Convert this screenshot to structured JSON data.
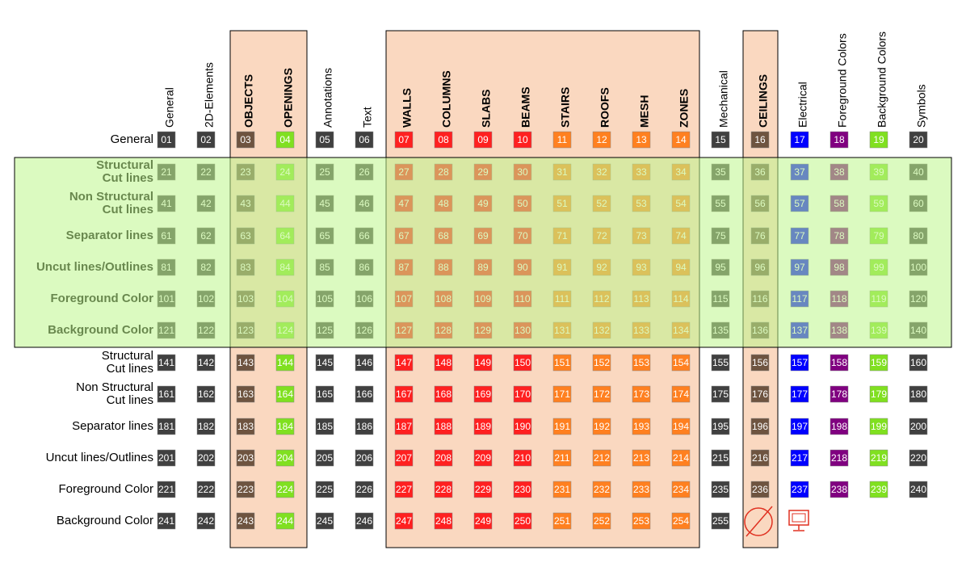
{
  "columns": [
    "General",
    "2D-Elements",
    "OBJECTS",
    "OPENINGS",
    "Annotations",
    "Text",
    "WALLS",
    "COLUMNS",
    "SLABS",
    "BEAMS",
    "STAIRS",
    "ROOFS",
    "MESH",
    "ZONES",
    "Mechanical",
    "CEILINGS",
    "Electrical",
    "Foreground Colors",
    "Background Colors",
    "Symbols"
  ],
  "rows": [
    {
      "label": [
        "General"
      ],
      "cells": [
        "01",
        "02",
        "03",
        "04",
        "05",
        "06",
        "07",
        "08",
        "09",
        "10",
        "11",
        "12",
        "13",
        "14",
        "15",
        "16",
        "17",
        "18",
        "19",
        "20"
      ]
    },
    {
      "label": [
        "Structural",
        "Cut lines"
      ],
      "cells": [
        "21",
        "22",
        "23",
        "24",
        "25",
        "26",
        "27",
        "28",
        "29",
        "30",
        "31",
        "32",
        "33",
        "34",
        "35",
        "36",
        "37",
        "38",
        "39",
        "40"
      ]
    },
    {
      "label": [
        "Non Structural",
        "Cut lines"
      ],
      "cells": [
        "41",
        "42",
        "43",
        "44",
        "45",
        "46",
        "47",
        "48",
        "49",
        "50",
        "51",
        "52",
        "53",
        "54",
        "55",
        "56",
        "57",
        "58",
        "59",
        "60"
      ]
    },
    {
      "label": [
        "Separator lines"
      ],
      "cells": [
        "61",
        "62",
        "63",
        "64",
        "65",
        "66",
        "67",
        "68",
        "69",
        "70",
        "71",
        "72",
        "73",
        "74",
        "75",
        "76",
        "77",
        "78",
        "79",
        "80"
      ]
    },
    {
      "label": [
        "Uncut lines/Outlines"
      ],
      "cells": [
        "81",
        "82",
        "83",
        "84",
        "85",
        "86",
        "87",
        "88",
        "89",
        "90",
        "91",
        "92",
        "93",
        "94",
        "95",
        "96",
        "97",
        "98",
        "99",
        "100"
      ]
    },
    {
      "label": [
        "Foreground Color"
      ],
      "cells": [
        "101",
        "102",
        "103",
        "104",
        "105",
        "106",
        "107",
        "108",
        "109",
        "110",
        "111",
        "112",
        "113",
        "114",
        "115",
        "116",
        "117",
        "118",
        "119",
        "120"
      ]
    },
    {
      "label": [
        "Background Color"
      ],
      "cells": [
        "121",
        "122",
        "123",
        "124",
        "125",
        "126",
        "127",
        "128",
        "129",
        "130",
        "131",
        "132",
        "133",
        "134",
        "135",
        "136",
        "137",
        "138",
        "139",
        "140"
      ]
    },
    {
      "label": [
        "Structural",
        "Cut lines"
      ],
      "cells": [
        "141",
        "142",
        "143",
        "144",
        "145",
        "146",
        "147",
        "148",
        "149",
        "150",
        "151",
        "152",
        "153",
        "154",
        "155",
        "156",
        "157",
        "158",
        "159",
        "160"
      ]
    },
    {
      "label": [
        "Non Structural",
        "Cut lines"
      ],
      "cells": [
        "161",
        "162",
        "163",
        "164",
        "165",
        "166",
        "167",
        "168",
        "169",
        "170",
        "171",
        "172",
        "173",
        "174",
        "175",
        "176",
        "177",
        "178",
        "179",
        "180"
      ]
    },
    {
      "label": [
        "Separator lines"
      ],
      "cells": [
        "181",
        "182",
        "183",
        "184",
        "185",
        "186",
        "187",
        "188",
        "189",
        "190",
        "191",
        "192",
        "193",
        "194",
        "195",
        "196",
        "197",
        "198",
        "199",
        "200"
      ]
    },
    {
      "label": [
        "Uncut lines/Outlines"
      ],
      "cells": [
        "201",
        "202",
        "203",
        "204",
        "205",
        "206",
        "207",
        "208",
        "209",
        "210",
        "211",
        "212",
        "213",
        "214",
        "215",
        "216",
        "217",
        "218",
        "219",
        "220"
      ]
    },
    {
      "label": [
        "Foreground Color"
      ],
      "cells": [
        "221",
        "222",
        "223",
        "224",
        "225",
        "226",
        "227",
        "228",
        "229",
        "230",
        "231",
        "232",
        "233",
        "234",
        "235",
        "236",
        "237",
        "238",
        "239",
        "240"
      ]
    },
    {
      "label": [
        "Background Color"
      ],
      "cells": [
        "241",
        "242",
        "243",
        "244",
        "245",
        "246",
        "247",
        "248",
        "249",
        "250",
        "251",
        "252",
        "253",
        "254",
        "255"
      ]
    }
  ]
}
